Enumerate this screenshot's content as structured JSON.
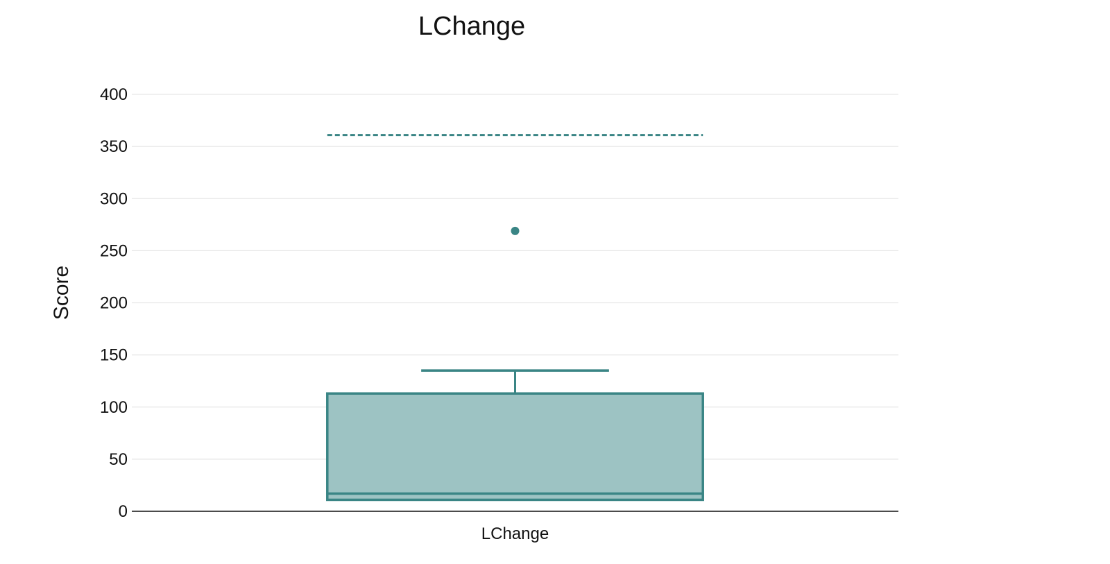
{
  "chart_data": {
    "type": "box",
    "title": "LChange",
    "xlabel": "",
    "ylabel": "Score",
    "ylim": [
      0,
      400
    ],
    "yticks": [
      0,
      50,
      100,
      150,
      200,
      250,
      300,
      350,
      400
    ],
    "grid": true,
    "categories": [
      "LChange"
    ],
    "series": [
      {
        "category": "LChange",
        "whisker_low": 11,
        "q1": 11,
        "median": 17,
        "q3": 113,
        "whisker_high": 135,
        "outliers": [
          269
        ],
        "reference_line": 361
      }
    ],
    "colors": {
      "box_fill": "#9dc3c3",
      "box_stroke": "#3a8585",
      "grid": "#e6e6e6",
      "axis": "#111111"
    }
  }
}
